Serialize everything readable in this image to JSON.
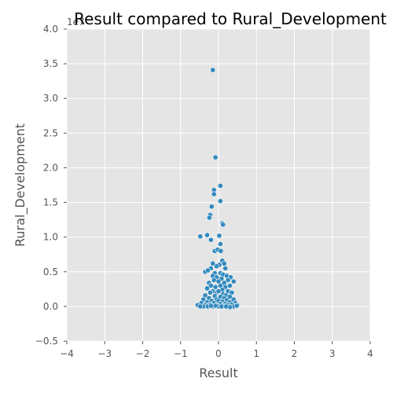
{
  "chart_data": {
    "type": "scatter",
    "title": "Result compared to Rural_Development",
    "xlabel": "Result",
    "ylabel": "Rural_Development",
    "xlim": [
      -4,
      4
    ],
    "ylim": [
      -0.5,
      4.0
    ],
    "y_offset_label": "1e7",
    "xticks": [
      "−4",
      "−3",
      "−2",
      "−1",
      "0",
      "1",
      "2",
      "3",
      "4"
    ],
    "yticks": [
      "−0.5",
      "0.0",
      "0.5",
      "1.0",
      "1.5",
      "2.0",
      "2.5",
      "3.0",
      "3.5",
      "4.0"
    ],
    "grid": true,
    "background": "#e5e5e5",
    "point_color": "#348abd",
    "points": [
      [
        -0.15,
        3.41
      ],
      [
        -0.08,
        2.15
      ],
      [
        0.05,
        1.74
      ],
      [
        -0.12,
        1.68
      ],
      [
        -0.12,
        1.62
      ],
      [
        0.05,
        1.52
      ],
      [
        -0.18,
        1.44
      ],
      [
        -0.22,
        1.32
      ],
      [
        -0.24,
        1.28
      ],
      [
        0.1,
        1.2
      ],
      [
        0.12,
        1.18
      ],
      [
        -0.48,
        1.01
      ],
      [
        -0.3,
        1.03
      ],
      [
        0.02,
        1.02
      ],
      [
        -0.2,
        0.96
      ],
      [
        0.05,
        0.9
      ],
      [
        -0.1,
        0.8
      ],
      [
        -0.02,
        0.82
      ],
      [
        0.06,
        0.8
      ],
      [
        -0.15,
        0.62
      ],
      [
        0.1,
        0.66
      ],
      [
        0.15,
        0.62
      ],
      [
        0.02,
        0.6
      ],
      [
        -0.05,
        0.58
      ],
      [
        0.18,
        0.55
      ],
      [
        -0.2,
        0.55
      ],
      [
        -0.35,
        0.5
      ],
      [
        -0.28,
        0.52
      ],
      [
        -0.1,
        0.48
      ],
      [
        0.05,
        0.48
      ],
      [
        0.12,
        0.46
      ],
      [
        0.22,
        0.44
      ],
      [
        0.32,
        0.42
      ],
      [
        0.4,
        0.36
      ],
      [
        -0.15,
        0.44
      ],
      [
        -0.05,
        0.42
      ],
      [
        0.08,
        0.4
      ],
      [
        0.25,
        0.38
      ],
      [
        -0.12,
        0.38
      ],
      [
        0.0,
        0.36
      ],
      [
        0.15,
        0.34
      ],
      [
        -0.25,
        0.34
      ],
      [
        -0.2,
        0.3
      ],
      [
        0.3,
        0.3
      ],
      [
        0.05,
        0.3
      ],
      [
        -0.08,
        0.28
      ],
      [
        0.18,
        0.28
      ],
      [
        -0.3,
        0.26
      ],
      [
        0.1,
        0.24
      ],
      [
        -0.15,
        0.22
      ],
      [
        0.25,
        0.22
      ],
      [
        -0.05,
        0.2
      ],
      [
        0.0,
        0.22
      ],
      [
        0.35,
        0.2
      ],
      [
        -0.22,
        0.2
      ],
      [
        0.12,
        0.18
      ],
      [
        -0.35,
        0.16
      ],
      [
        0.2,
        0.16
      ],
      [
        -0.1,
        0.15
      ],
      [
        0.05,
        0.14
      ],
      [
        0.3,
        0.14
      ],
      [
        -0.25,
        0.12
      ],
      [
        0.15,
        0.12
      ],
      [
        -0.05,
        0.1
      ],
      [
        0.4,
        0.1
      ],
      [
        -0.4,
        0.1
      ],
      [
        0.22,
        0.09
      ],
      [
        0.0,
        0.08
      ],
      [
        -0.18,
        0.08
      ],
      [
        0.1,
        0.07
      ],
      [
        0.3,
        0.06
      ],
      [
        -0.3,
        0.06
      ],
      [
        0.45,
        0.05
      ],
      [
        -0.45,
        0.05
      ],
      [
        -0.12,
        0.05
      ],
      [
        0.18,
        0.04
      ],
      [
        0.05,
        0.04
      ],
      [
        -0.22,
        0.03
      ],
      [
        0.35,
        0.03
      ],
      [
        -0.55,
        0.02
      ],
      [
        0.5,
        0.02
      ],
      [
        -0.35,
        0.02
      ],
      [
        0.25,
        0.02
      ],
      [
        -0.05,
        0.02
      ],
      [
        0.12,
        0.01
      ],
      [
        -0.15,
        0.0
      ],
      [
        0.0,
        0.0
      ],
      [
        0.4,
        0.0
      ],
      [
        -0.4,
        0.0
      ],
      [
        0.3,
        -0.01
      ],
      [
        -0.28,
        0.0
      ],
      [
        0.08,
        0.0
      ],
      [
        -0.08,
        0.01
      ],
      [
        0.2,
        0.0
      ],
      [
        -0.2,
        0.01
      ],
      [
        -0.48,
        0.0
      ],
      [
        0.48,
        0.01
      ]
    ]
  }
}
